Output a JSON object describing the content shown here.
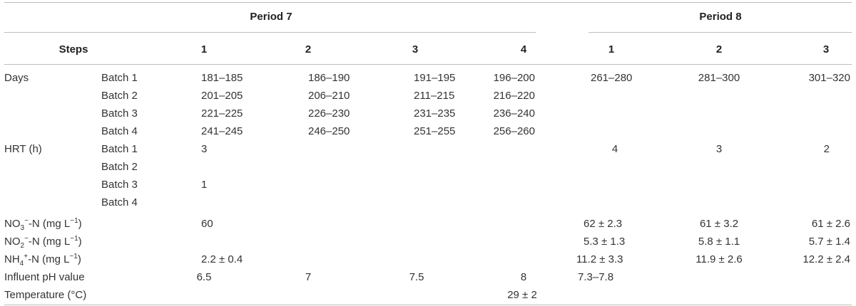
{
  "header": {
    "period7": "Period 7",
    "period8": "Period 8",
    "steps": "Steps",
    "p7_steps": [
      "1",
      "2",
      "3",
      "4"
    ],
    "p8_steps": [
      "1",
      "2",
      "3"
    ]
  },
  "rows": {
    "days": {
      "label": "Days",
      "batches": [
        "Batch 1",
        "Batch 2",
        "Batch 3",
        "Batch 4"
      ],
      "p7": [
        [
          "181–185",
          "186–190",
          "191–195",
          "196–200"
        ],
        [
          "201–205",
          "206–210",
          "211–215",
          "216–220"
        ],
        [
          "221–225",
          "226–230",
          "231–235",
          "236–240"
        ],
        [
          "241–245",
          "246–250",
          "251–255",
          "256–260"
        ]
      ],
      "p8": [
        "261–280",
        "281–300",
        "301–320"
      ]
    },
    "hrt": {
      "label": "HRT (h)",
      "batches": [
        "Batch 1",
        "Batch 2",
        "Batch 3",
        "Batch 4"
      ],
      "p7_batch1": "3",
      "p7_batch3": "1",
      "p8": [
        "4",
        "3",
        "2"
      ]
    },
    "no3": {
      "label_pre": "NO",
      "label_sub": "3",
      "label_sup": "−",
      "label_post": "-N (mg L",
      "label_unit_sup": "−1",
      "label_close": ")",
      "p7": "60",
      "p8": [
        "62 ± 2.3",
        "61 ± 3.2",
        "61 ± 2.6"
      ]
    },
    "no2": {
      "label_pre": "NO",
      "label_sub": "2",
      "label_sup": "−",
      "label_post": "-N (mg L",
      "label_unit_sup": "−1",
      "label_close": ")",
      "p8": [
        "5.3 ± 1.3",
        "5.8 ± 1.1",
        "5.7 ± 1.4"
      ]
    },
    "nh4": {
      "label_pre": "NH",
      "label_sub": "4",
      "label_sup": "+",
      "label_post": "-N (mg L",
      "label_unit_sup": "−1",
      "label_close": ")",
      "p7": "2.2 ± 0.4",
      "p8": [
        "11.2 ± 3.3",
        "11.9 ± 2.6",
        "12.2 ± 2.4"
      ]
    },
    "ph": {
      "label": "Influent pH value",
      "p7": [
        "6.5",
        "7",
        "7.5",
        "8"
      ],
      "p8": "7.3–7.8"
    },
    "temp": {
      "label": "Temperature (°C)",
      "value": "29 ± 2"
    }
  }
}
